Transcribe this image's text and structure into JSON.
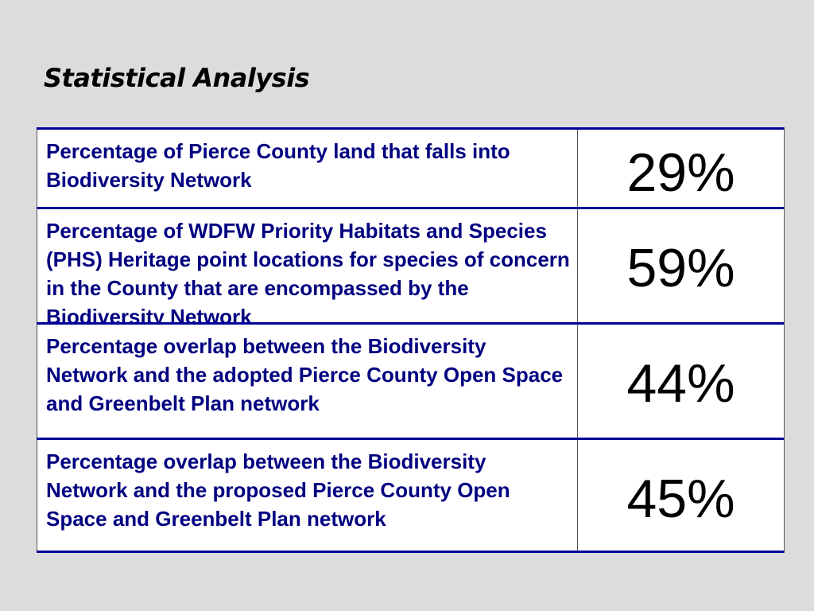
{
  "slide": {
    "title": "Statistical Analysis"
  },
  "colors": {
    "background": "#dcdcdc",
    "label_text": "#000080",
    "rule_lines": "#000099",
    "value_text": "#000000",
    "table_background": "#ffffff"
  },
  "table": {
    "rows": [
      {
        "label": "Percentage of Pierce County land that falls into Biodiversity Network",
        "value": "29%"
      },
      {
        "label": "Percentage of WDFW Priority Habitats and Species (PHS) Heritage point locations for species of concern in the County that are encompassed by the Biodiversity Network",
        "value": "59%"
      },
      {
        "label": "Percentage overlap between the Biodiversity Network and the adopted Pierce County Open Space and Greenbelt Plan network",
        "value": "44%"
      },
      {
        "label": "Percentage overlap between the Biodiversity Network and the proposed Pierce County Open Space and Greenbelt Plan network",
        "value": "45%"
      }
    ]
  }
}
